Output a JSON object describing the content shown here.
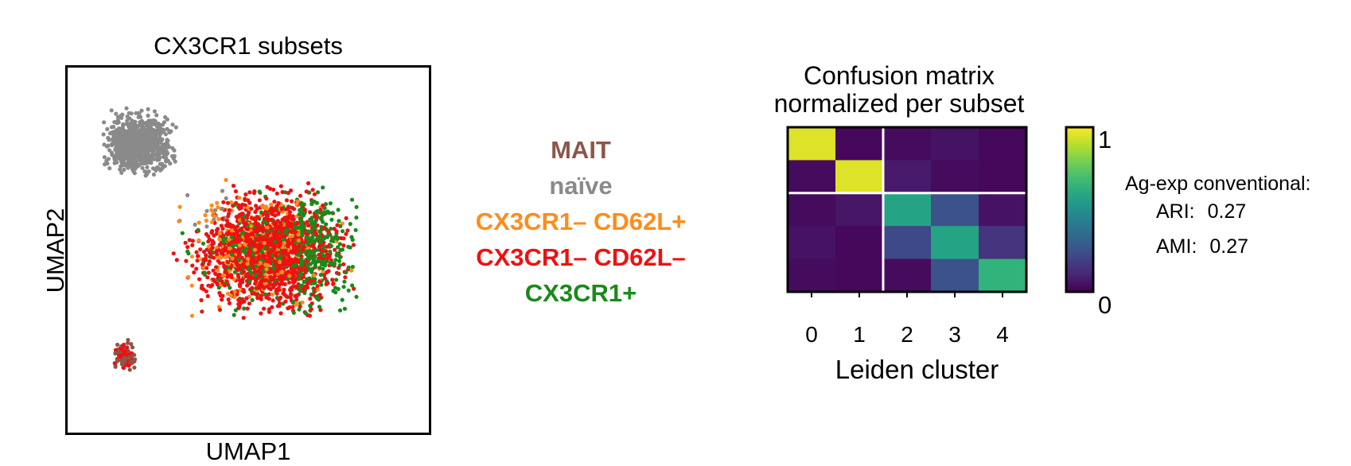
{
  "umap_panel": {
    "title": "CX3CR1 subsets",
    "xlabel": "UMAP1",
    "ylabel": "UMAP2"
  },
  "legend": [
    {
      "label": "MAIT",
      "color": "#8c564b"
    },
    {
      "label": "naïve",
      "color": "#8a8a8a"
    },
    {
      "label": "CX3CR1– CD62L+",
      "color": "#ff8c1a"
    },
    {
      "label": "CX3CR1– CD62L–",
      "color": "#ee1111"
    },
    {
      "label": "CX3CR1+",
      "color": "#1a8a1a"
    }
  ],
  "heatmap_panel": {
    "title_line1": "Confusion matrix",
    "title_line2": "normalized per subset",
    "xlabel": "Leiden cluster",
    "colorbar_max": "1",
    "colorbar_min": "0",
    "metrics": {
      "title": "Ag-exp conventional:",
      "ari_label": "ARI:",
      "ari_value": "0.27",
      "ami_label": "AMI:",
      "ami_value": "0.27"
    }
  },
  "chart_data": [
    {
      "type": "scatter",
      "title": "CX3CR1 subsets",
      "xlabel": "UMAP1",
      "ylabel": "UMAP2",
      "series": [
        {
          "name": "MAIT",
          "color": "#8c564b"
        },
        {
          "name": "naïve",
          "color": "#8a8a8a"
        },
        {
          "name": "CX3CR1– CD62L+",
          "color": "#ff8c1a"
        },
        {
          "name": "CX3CR1– CD62L–",
          "color": "#ee1111"
        },
        {
          "name": "CX3CR1+",
          "color": "#1a8a1a"
        }
      ],
      "grid": false
    },
    {
      "type": "heatmap",
      "title": "Confusion matrix normalized per subset",
      "xlabel": "Leiden cluster",
      "x_categories": [
        "0",
        "1",
        "2",
        "3",
        "4"
      ],
      "values": [
        [
          0.95,
          0.02,
          0.03,
          0.05,
          0.02
        ],
        [
          0.03,
          0.95,
          0.07,
          0.03,
          0.02
        ],
        [
          0.03,
          0.06,
          0.58,
          0.25,
          0.05
        ],
        [
          0.05,
          0.02,
          0.22,
          0.58,
          0.15
        ],
        [
          0.03,
          0.02,
          0.03,
          0.25,
          0.65
        ]
      ],
      "colormap": "viridis",
      "clim": [
        0,
        1
      ],
      "colorbar_ticks": [
        "0",
        "1"
      ],
      "separator_lines": {
        "after_column": 1,
        "after_row": 1
      }
    }
  ]
}
